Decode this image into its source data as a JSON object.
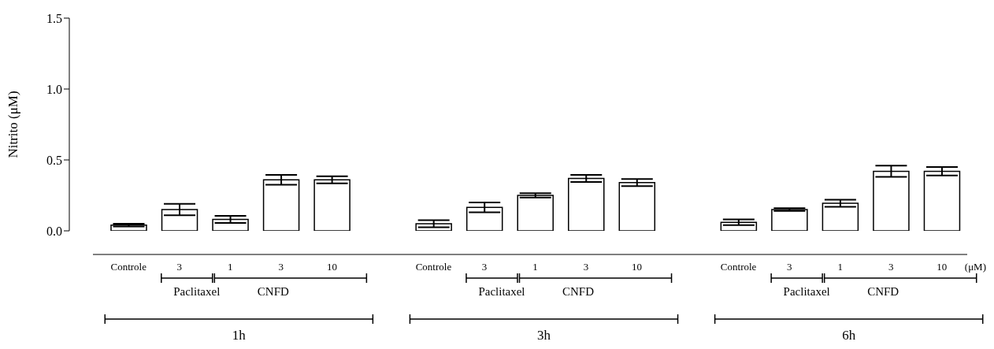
{
  "chart_data": {
    "type": "bar",
    "ylabel": "Nitrito (μM)",
    "categories": [
      "Controle",
      "3",
      "1",
      "3",
      "10",
      null,
      "Controle",
      "3",
      "1",
      "3",
      "10",
      null,
      "Controle",
      "3",
      "1",
      "3",
      "10"
    ],
    "values": [
      0.04,
      0.15,
      0.08,
      0.36,
      0.36,
      null,
      0.05,
      0.165,
      0.25,
      0.37,
      0.34,
      null,
      0.06,
      0.15,
      0.195,
      0.42,
      0.42
    ],
    "errors": [
      0.01,
      0.04,
      0.025,
      0.035,
      0.025,
      null,
      0.025,
      0.035,
      0.015,
      0.025,
      0.025,
      null,
      0.02,
      0.01,
      0.025,
      0.04,
      0.03
    ],
    "color": "#ffffff",
    "ylim": [
      0,
      1.5
    ],
    "yticks": [
      {
        "value": 0,
        "label": "0.0"
      },
      {
        "value": 0.5,
        "label": "0.5"
      },
      {
        "value": 1,
        "label": "1.0"
      },
      {
        "value": 1.5,
        "label": "1.5"
      }
    ],
    "annotations": [
      "(μM)",
      "Paclitaxel",
      "CNFD",
      "1h",
      "Paclitaxel",
      "CNFD",
      "3h",
      "Paclitaxel",
      "CNFD",
      "6h"
    ],
    "grid": false,
    "legend": false
  }
}
